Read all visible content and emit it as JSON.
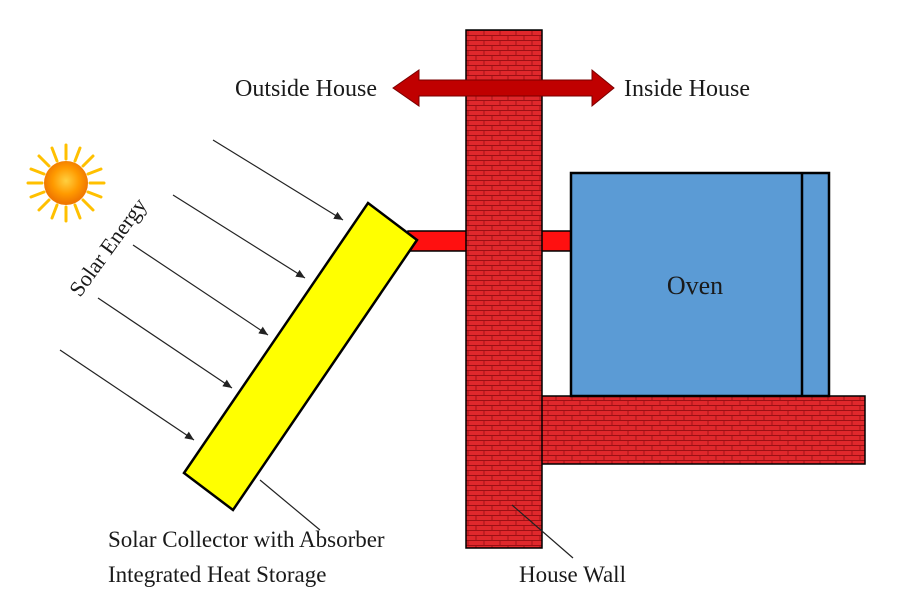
{
  "labels": {
    "outside_house": "Outside House",
    "inside_house": "Inside House",
    "solar_energy": "Solar Energy",
    "oven": "Oven",
    "collector_line1": "Solar Collector with Absorber",
    "collector_line2": "Integrated Heat Storage",
    "house_wall": "House Wall"
  },
  "colors": {
    "brick": "#e0282c",
    "mortar": "#9c1014",
    "arrow": "#c00000",
    "collector": "#ffff00",
    "oven": "#5b9bd5",
    "pipe": "#ff1010",
    "sun_core": "#ff8c00",
    "sun_glow": "#ffc000"
  },
  "icons": {
    "sun": "sun-icon",
    "double_arrow": "double-arrow-icon"
  }
}
